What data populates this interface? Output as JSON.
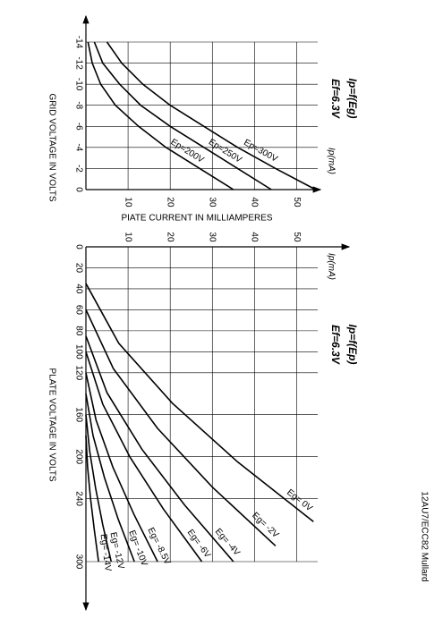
{
  "page_label": "12AU7/ECC82 Mullard",
  "chart_data": [
    {
      "type": "line",
      "title": "Ip=f(Eg)",
      "subtitle": "Ef=6.3V",
      "xlabel": "GRID VOLTAGE IN VOLTS",
      "ylabel": "PIATE CURRENT IN MILLIAMPERES",
      "y_unit_label": "Ip(mA)",
      "x": [
        -14,
        -12,
        -10,
        -8,
        -6,
        -4,
        -2,
        0
      ],
      "series": [
        {
          "name": "Ep=200V",
          "color": "#000000",
          "values": [
            0.5,
            1.5,
            3.5,
            7,
            12.5,
            19,
            27,
            35
          ]
        },
        {
          "name": "Ep=250V",
          "color": "#000000",
          "values": [
            2,
            4,
            8,
            13,
            20,
            28,
            36,
            44
          ]
        },
        {
          "name": "Ep=300V",
          "color": "#000000",
          "values": [
            5,
            8.5,
            13.5,
            20,
            28,
            36,
            45,
            54.5
          ]
        }
      ],
      "xlim": [
        -14,
        0
      ],
      "xticks": [
        -14,
        -12,
        -10,
        -8,
        -6,
        -4,
        -2,
        0
      ],
      "ylim": [
        0,
        55
      ],
      "yticks": [
        10,
        20,
        30,
        40,
        50
      ],
      "grid": true
    },
    {
      "type": "line",
      "title": "Ip=f(Ep)",
      "subtitle": "Ef=6.3V",
      "xlabel": "PLATE VOLTAGE IN VOLTS",
      "y_unit_label": "Ip(mA)",
      "series": [
        {
          "name": "Eg= 0V",
          "color": "#000000",
          "x": [
            35,
            92,
            149,
            205,
            262
          ],
          "values": [
            0,
            7.8,
            20.5,
            36,
            54
          ]
        },
        {
          "name": "Eg= -2V",
          "color": "#000000",
          "x": [
            60,
            116,
            173,
            229,
            285
          ],
          "values": [
            0,
            6.5,
            17,
            30,
            45
          ]
        },
        {
          "name": "Eg= -4V",
          "color": "#000000",
          "x": [
            85,
            139,
            193,
            246,
            300
          ],
          "values": [
            0,
            5,
            13.3,
            23.4,
            35
          ]
        },
        {
          "name": "Eg= -6V",
          "color": "#000000",
          "x": [
            100,
            150,
            200,
            250,
            300
          ],
          "values": [
            0,
            4,
            10.4,
            18.4,
            27.5
          ]
        },
        {
          "name": "Eg= -8.5V",
          "color": "#000000",
          "x": [
            120,
            165,
            210,
            255,
            300
          ],
          "values": [
            0,
            2.4,
            6.4,
            11.4,
            17
          ]
        },
        {
          "name": "Eg= -10V",
          "color": "#000000",
          "x": [
            140,
            180,
            220,
            260,
            300
          ],
          "values": [
            0,
            1.7,
            4.4,
            7.7,
            11.5
          ]
        },
        {
          "name": "Eg= -12V",
          "color": "#000000",
          "x": [
            160,
            195,
            230,
            265,
            300
          ],
          "values": [
            0,
            0.9,
            2.3,
            4,
            6
          ]
        },
        {
          "name": "Eg= -14V",
          "color": "#000000",
          "x": [
            180,
            210,
            240,
            270,
            300
          ],
          "values": [
            0,
            0.4,
            1.1,
            2,
            3
          ]
        }
      ],
      "xlim": [
        0,
        300
      ],
      "xticks": [
        0,
        20,
        40,
        60,
        80,
        100,
        120,
        160,
        200,
        240,
        300
      ],
      "ylim": [
        0,
        55
      ],
      "yticks": [
        10,
        20,
        30,
        40,
        50
      ],
      "grid": true
    }
  ]
}
